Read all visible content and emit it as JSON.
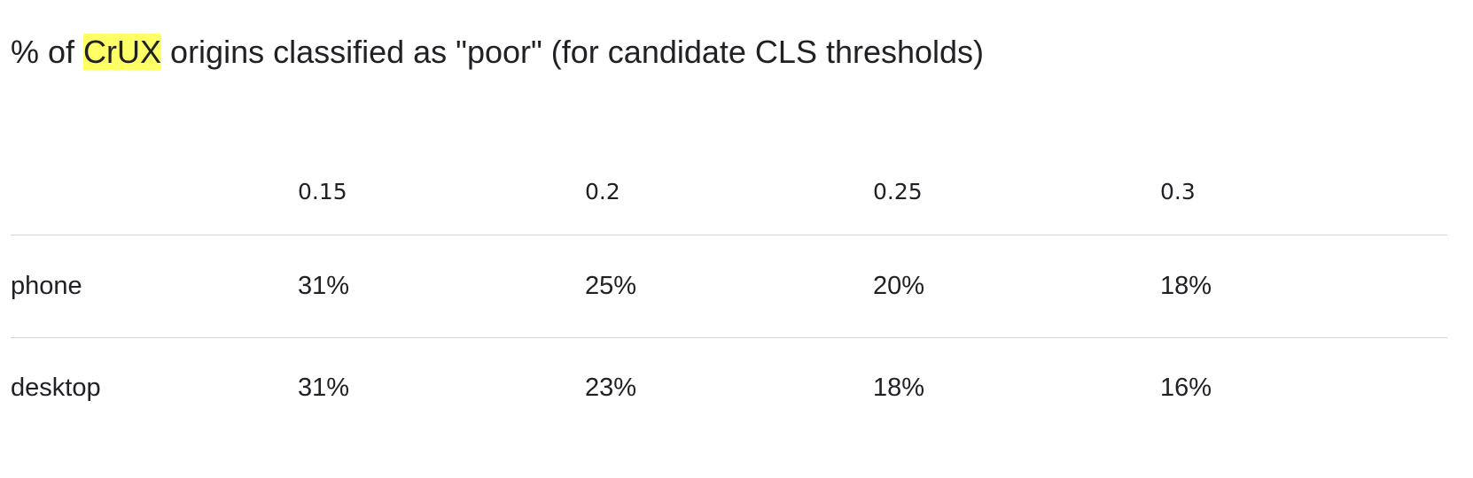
{
  "header": {
    "title": {
      "before": "% of",
      "highlight": "CrUX",
      "after": "origins classified as \"poor\" (for candidate CLS thresholds)"
    }
  },
  "table": {
    "columns": [
      "0.15",
      "0.2",
      "0.25",
      "0.3"
    ],
    "rows": [
      {
        "label": "phone",
        "cells": [
          "31%",
          "25%",
          "20%",
          "18%"
        ]
      },
      {
        "label": "desktop",
        "cells": [
          "31%",
          "23%",
          "18%",
          "16%"
        ]
      }
    ]
  }
}
